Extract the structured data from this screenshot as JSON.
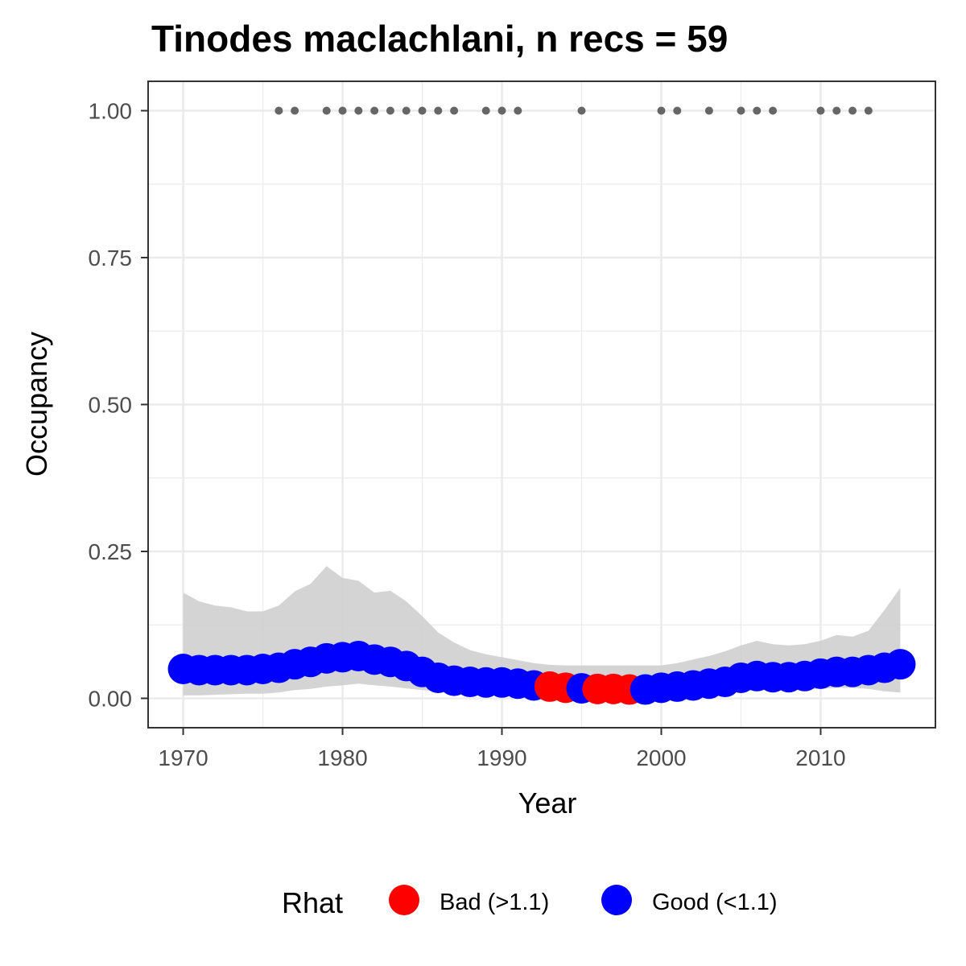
{
  "chart_data": {
    "type": "line",
    "title": "Tinodes maclachlani, n recs = 59",
    "xlabel": "Year",
    "ylabel": "Occupancy",
    "xlim": [
      1967.8,
      2017.2
    ],
    "ylim": [
      -0.05,
      1.05
    ],
    "x_ticks": [
      1970,
      1980,
      1990,
      2000,
      2010
    ],
    "x_tick_labels": [
      "1970",
      "1980",
      "1990",
      "2000",
      "2010"
    ],
    "y_ticks": [
      0,
      0.25,
      0.5,
      0.75,
      1.0
    ],
    "y_tick_labels": [
      "0.00",
      "0.25",
      "0.50",
      "0.75",
      "1.00"
    ],
    "grid": true,
    "years": [
      1970,
      1971,
      1972,
      1973,
      1974,
      1975,
      1976,
      1977,
      1978,
      1979,
      1980,
      1981,
      1982,
      1983,
      1984,
      1985,
      1986,
      1987,
      1988,
      1989,
      1990,
      1991,
      1992,
      1993,
      1994,
      1995,
      1996,
      1997,
      1998,
      1999,
      2000,
      2001,
      2002,
      2003,
      2004,
      2005,
      2006,
      2007,
      2008,
      2009,
      2010,
      2011,
      2012,
      2013,
      2014,
      2015
    ],
    "occupancy_mean": [
      0.05,
      0.048,
      0.048,
      0.048,
      0.048,
      0.05,
      0.052,
      0.058,
      0.062,
      0.068,
      0.07,
      0.072,
      0.066,
      0.062,
      0.055,
      0.045,
      0.035,
      0.03,
      0.028,
      0.027,
      0.027,
      0.025,
      0.022,
      0.02,
      0.018,
      0.017,
      0.016,
      0.016,
      0.015,
      0.015,
      0.018,
      0.02,
      0.022,
      0.025,
      0.028,
      0.035,
      0.038,
      0.036,
      0.036,
      0.038,
      0.042,
      0.045,
      0.045,
      0.048,
      0.052,
      0.058
    ],
    "ci_upper": [
      0.18,
      0.165,
      0.158,
      0.155,
      0.148,
      0.148,
      0.158,
      0.182,
      0.195,
      0.225,
      0.205,
      0.2,
      0.18,
      0.183,
      0.165,
      0.14,
      0.112,
      0.095,
      0.082,
      0.075,
      0.07,
      0.065,
      0.06,
      0.057,
      0.056,
      0.056,
      0.056,
      0.056,
      0.056,
      0.056,
      0.056,
      0.06,
      0.066,
      0.072,
      0.08,
      0.09,
      0.098,
      0.092,
      0.09,
      0.092,
      0.098,
      0.108,
      0.105,
      0.115,
      0.15,
      0.188
    ],
    "ci_lower": [
      0.005,
      0.005,
      0.006,
      0.007,
      0.008,
      0.008,
      0.01,
      0.014,
      0.016,
      0.02,
      0.022,
      0.025,
      0.022,
      0.02,
      0.017,
      0.014,
      0.012,
      0.01,
      0.009,
      0.008,
      0.007,
      0.006,
      0.005,
      0.005,
      0.004,
      0.004,
      0.004,
      0.004,
      0.004,
      0.004,
      0.004,
      0.005,
      0.006,
      0.008,
      0.01,
      0.012,
      0.014,
      0.014,
      0.014,
      0.015,
      0.016,
      0.018,
      0.018,
      0.016,
      0.012,
      0.01
    ],
    "rhat_status": [
      "good",
      "good",
      "good",
      "good",
      "good",
      "good",
      "good",
      "good",
      "good",
      "good",
      "good",
      "good",
      "good",
      "good",
      "good",
      "good",
      "good",
      "good",
      "good",
      "good",
      "good",
      "good",
      "good",
      "bad",
      "bad",
      "good",
      "bad",
      "bad",
      "bad",
      "good",
      "good",
      "good",
      "good",
      "good",
      "good",
      "good",
      "good",
      "good",
      "good",
      "good",
      "good",
      "good",
      "good",
      "good",
      "good",
      "good"
    ],
    "record_years": [
      1976,
      1977,
      1979,
      1980,
      1981,
      1982,
      1983,
      1984,
      1985,
      1986,
      1987,
      1989,
      1990,
      1991,
      1995,
      2000,
      2001,
      2003,
      2005,
      2006,
      2007,
      2010,
      2011,
      2012,
      2013
    ],
    "record_value": 1.0,
    "legend": {
      "title": "Rhat",
      "placement": "bottom",
      "items": [
        {
          "key": "bad",
          "label": "Bad (>1.1)",
          "color": "#ff0000"
        },
        {
          "key": "good",
          "label": "Good (<1.1)",
          "color": "#0000ff"
        }
      ]
    },
    "colors": {
      "ribbon": "#cccccc",
      "record_points": "#666666",
      "grid": "#ebebeb",
      "panel_border": "#333333"
    }
  }
}
